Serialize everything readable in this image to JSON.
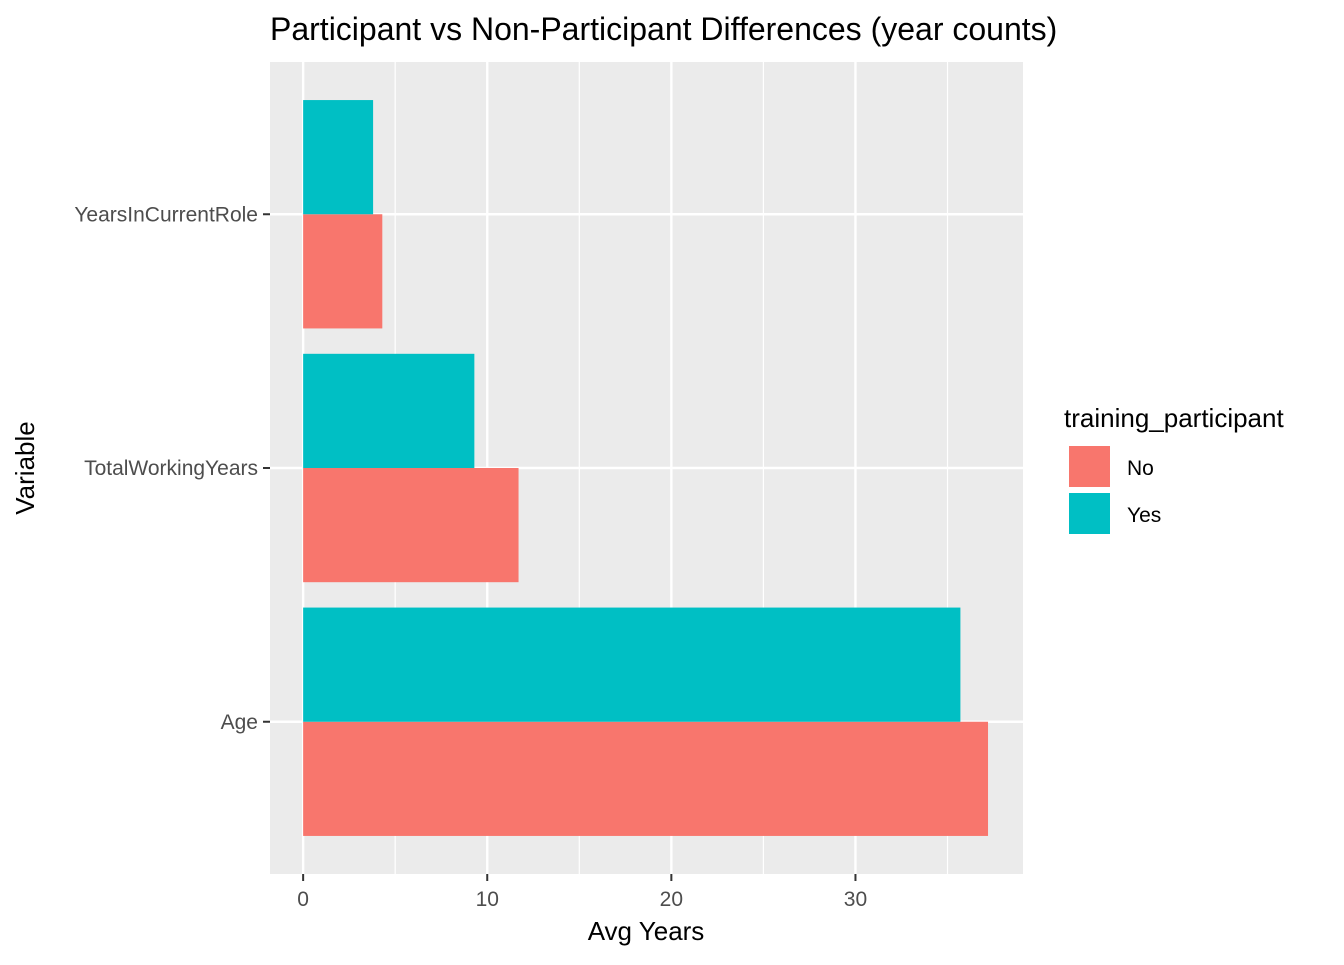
{
  "chart_data": {
    "type": "bar",
    "orientation": "horizontal",
    "title": "Participant vs Non-Participant Differences (year counts)",
    "xlabel": "Avg Years",
    "ylabel": "Variable",
    "categories": [
      "Age",
      "TotalWorkingYears",
      "YearsInCurrentRole"
    ],
    "series": [
      {
        "name": "No",
        "color": "#F8766D",
        "values": [
          37.2,
          11.7,
          4.3
        ]
      },
      {
        "name": "Yes",
        "color": "#00BFC4",
        "values": [
          35.7,
          9.3,
          3.8
        ]
      }
    ],
    "xlim": [
      -1.8,
      39.1
    ],
    "xticks": [
      0,
      10,
      20,
      30
    ],
    "grid": true,
    "legend": {
      "title": "training_participant",
      "placement": "right",
      "entries": [
        "No",
        "Yes"
      ]
    }
  }
}
